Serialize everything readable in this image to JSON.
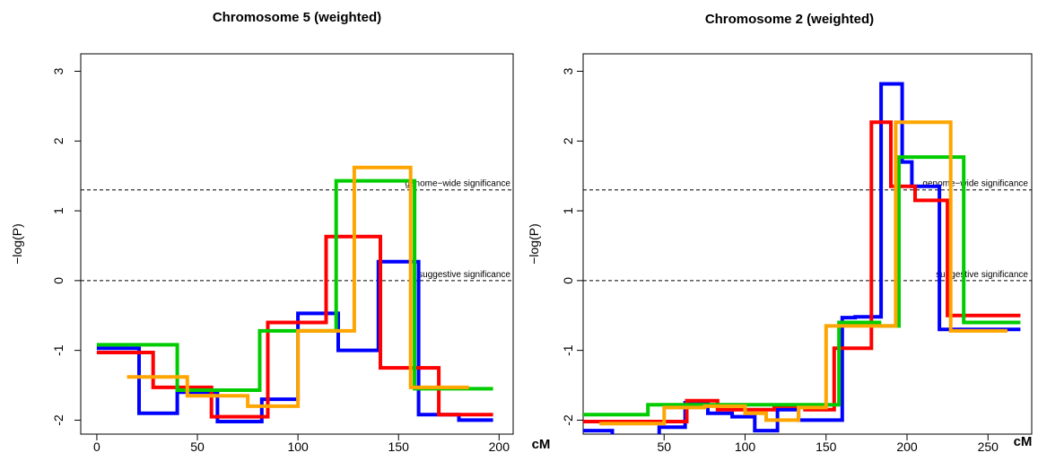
{
  "chart_data": [
    {
      "type": "line",
      "step": true,
      "title": "Chromosome 5 (weighted)",
      "xlabel": "",
      "ylabel": "−log(P)",
      "x_unit": "cM",
      "xlim": [
        -8,
        207
      ],
      "ylim": [
        -2.2,
        3.25
      ],
      "xticks": [
        0,
        50,
        100,
        150,
        200
      ],
      "yticks": [
        -2,
        -1,
        0,
        1,
        2,
        3
      ],
      "hlines": [
        {
          "y": 1.3,
          "label": "genome−wide significance"
        },
        {
          "y": 0,
          "label": "suggestive significance"
        }
      ],
      "series": [
        {
          "color": "#0000ff",
          "x": [
            0,
            21,
            21,
            40,
            40,
            60,
            60,
            82,
            82,
            100,
            100,
            120,
            120,
            140,
            140,
            160,
            160,
            180,
            180,
            197
          ],
          "y": [
            -0.97,
            -0.97,
            -1.9,
            -1.9,
            -1.6,
            -1.6,
            -2.02,
            -2.02,
            -1.7,
            -1.7,
            -0.47,
            -0.47,
            -1.0,
            -1.0,
            0.27,
            0.27,
            -1.92,
            -1.92,
            -2.0,
            -2.0
          ]
        },
        {
          "color": "#ff0000",
          "x": [
            0,
            28,
            28,
            57,
            57,
            85,
            85,
            114,
            114,
            141,
            141,
            170,
            170,
            197
          ],
          "y": [
            -1.03,
            -1.03,
            -1.53,
            -1.53,
            -1.95,
            -1.95,
            -0.6,
            -0.6,
            0.63,
            0.63,
            -1.25,
            -1.25,
            -1.92,
            -1.92
          ]
        },
        {
          "color": "#00cc00",
          "x": [
            0,
            40,
            40,
            81,
            81,
            119,
            119,
            158,
            158,
            197
          ],
          "y": [
            -0.92,
            -0.92,
            -1.57,
            -1.57,
            -0.72,
            -0.72,
            1.43,
            1.43,
            -1.55,
            -1.55
          ]
        },
        {
          "color": "#ffa500",
          "x": [
            15,
            45,
            45,
            75,
            75,
            100,
            100,
            128,
            128,
            156,
            156,
            185
          ],
          "y": [
            -1.38,
            -1.38,
            -1.65,
            -1.65,
            -1.8,
            -1.8,
            -0.72,
            -0.72,
            1.62,
            1.62,
            -1.53,
            -1.53
          ]
        }
      ]
    },
    {
      "type": "line",
      "step": true,
      "title": "Chromosome 2 (weighted)",
      "xlabel": "",
      "ylabel": "−log(P)",
      "x_unit": "cM",
      "xlim": [
        0,
        277
      ],
      "ylim": [
        -2.2,
        3.25
      ],
      "xticks": [
        50,
        100,
        150,
        200,
        250
      ],
      "yticks": [
        -2,
        -1,
        0,
        1,
        2,
        3
      ],
      "hlines": [
        {
          "y": 1.3,
          "label": "genome−wide significance"
        },
        {
          "y": 0,
          "label": "suggestive significance"
        }
      ],
      "series": [
        {
          "color": "#0000ff",
          "x": [
            0,
            18,
            18,
            47,
            47,
            63,
            63,
            77,
            77,
            92,
            92,
            106,
            106,
            120,
            120,
            133,
            133,
            160,
            160,
            168,
            168,
            184,
            184,
            197,
            197,
            203,
            203,
            220,
            220,
            270
          ],
          "y": [
            -2.15,
            -2.15,
            -2.3,
            -2.3,
            -2.1,
            -2.1,
            -1.75,
            -1.75,
            -1.9,
            -1.9,
            -1.95,
            -1.95,
            -2.15,
            -2.15,
            -1.85,
            -1.85,
            -2.0,
            -2.0,
            -0.53,
            -0.53,
            -0.52,
            -0.52,
            2.82,
            2.82,
            1.7,
            1.7,
            1.35,
            1.35,
            -0.7,
            -0.7
          ]
        },
        {
          "color": "#ff0000",
          "x": [
            0,
            64,
            64,
            83,
            83,
            100,
            100,
            118,
            118,
            137,
            137,
            155,
            155,
            178,
            178,
            190,
            190,
            205,
            205,
            225,
            225,
            270
          ],
          "y": [
            -2.02,
            -2.02,
            -1.72,
            -1.72,
            -1.85,
            -1.85,
            -1.85,
            -1.85,
            -1.8,
            -1.8,
            -1.85,
            -1.85,
            -0.97,
            -0.97,
            2.27,
            2.27,
            1.35,
            1.35,
            1.15,
            1.15,
            -0.5,
            -0.5
          ]
        },
        {
          "color": "#00cc00",
          "x": [
            0,
            40,
            40,
            158,
            158,
            172,
            172,
            183,
            183,
            195,
            195,
            235,
            235,
            270
          ],
          "y": [
            -1.92,
            -1.92,
            -1.78,
            -1.78,
            -0.6,
            -0.6,
            -0.6,
            -0.6,
            -0.65,
            -0.65,
            1.77,
            1.77,
            -0.6,
            -0.6
          ]
        },
        {
          "color": "#ffa500",
          "x": [
            10,
            50,
            50,
            75,
            75,
            100,
            100,
            113,
            113,
            133,
            133,
            150,
            150,
            170,
            170,
            193,
            193,
            227,
            227,
            262
          ],
          "y": [
            -2.05,
            -2.05,
            -1.82,
            -1.82,
            -1.8,
            -1.8,
            -1.9,
            -1.9,
            -2.0,
            -2.0,
            -1.82,
            -1.82,
            -0.65,
            -0.65,
            -0.65,
            -0.65,
            2.27,
            2.27,
            -0.72,
            -0.72
          ]
        }
      ]
    }
  ]
}
